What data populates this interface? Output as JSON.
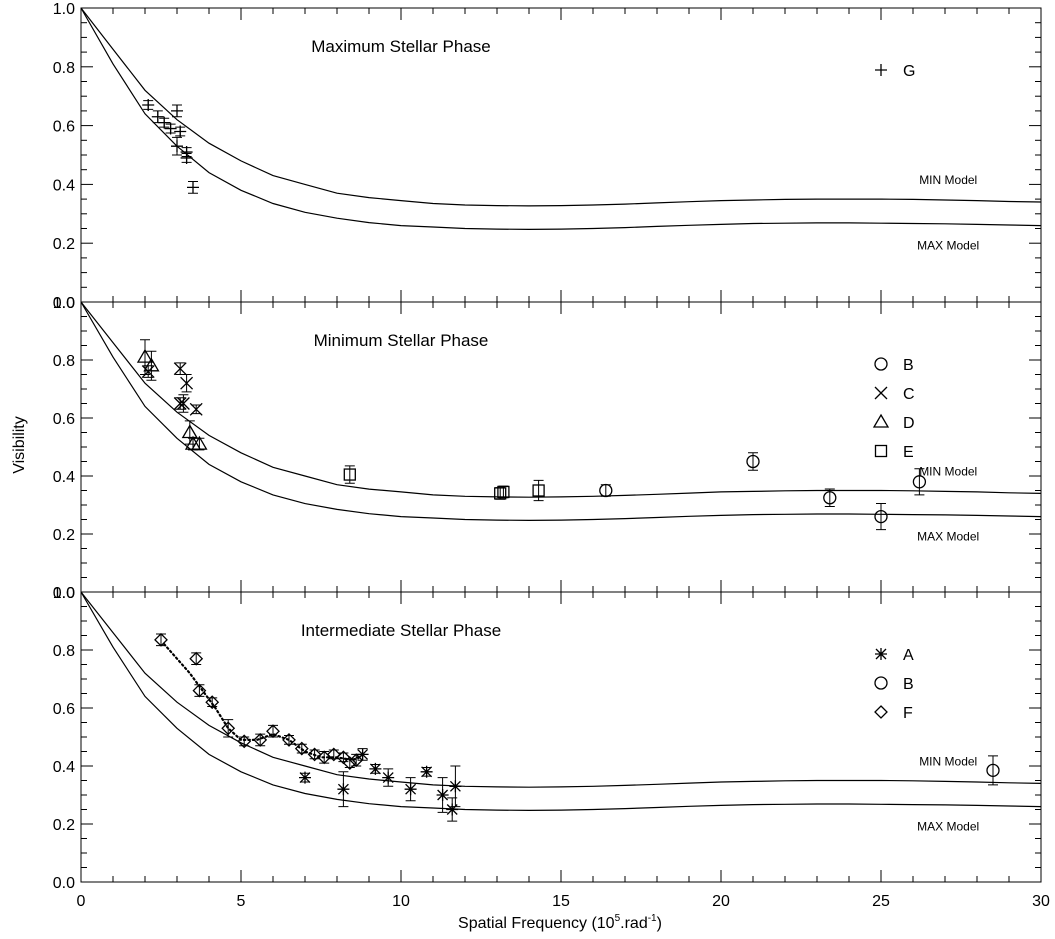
{
  "chart_data": {
    "type": "scatter",
    "xlabel": "Spatial Frequency  (10",
    "xlabel_exp": "5",
    "xlabel_mid": ".rad",
    "xlabel_exp2": "-1",
    "xlabel_end": ")",
    "ylabel": "Visibility",
    "xlim": [
      0,
      30
    ],
    "ylim": [
      0,
      1
    ],
    "x_ticks": [
      "0",
      "5",
      "10",
      "15",
      "20",
      "25",
      "30"
    ],
    "y_ticks": [
      "0.0",
      "0.2",
      "0.4",
      "0.6",
      "0.8",
      "1.0"
    ],
    "models": {
      "min_label": "MIN Model",
      "max_label": "MAX Model",
      "min_curve": [
        [
          0,
          1.0
        ],
        [
          1,
          0.86
        ],
        [
          2,
          0.72
        ],
        [
          3,
          0.62
        ],
        [
          4,
          0.54
        ],
        [
          5,
          0.48
        ],
        [
          6,
          0.43
        ],
        [
          7,
          0.4
        ],
        [
          8,
          0.37
        ],
        [
          9,
          0.355
        ],
        [
          10,
          0.345
        ],
        [
          11,
          0.335
        ],
        [
          12,
          0.33
        ],
        [
          13,
          0.328
        ],
        [
          14,
          0.327
        ],
        [
          15,
          0.328
        ],
        [
          16,
          0.33
        ],
        [
          17,
          0.333
        ],
        [
          18,
          0.337
        ],
        [
          19,
          0.341
        ],
        [
          20,
          0.345
        ],
        [
          21,
          0.347
        ],
        [
          22,
          0.349
        ],
        [
          23,
          0.35
        ],
        [
          24,
          0.35
        ],
        [
          25,
          0.35
        ],
        [
          26,
          0.349
        ],
        [
          27,
          0.347
        ],
        [
          28,
          0.345
        ],
        [
          29,
          0.342
        ],
        [
          30,
          0.34
        ]
      ],
      "max_curve": [
        [
          0,
          1.0
        ],
        [
          1,
          0.81
        ],
        [
          2,
          0.64
        ],
        [
          3,
          0.53
        ],
        [
          4,
          0.44
        ],
        [
          5,
          0.38
        ],
        [
          6,
          0.335
        ],
        [
          7,
          0.305
        ],
        [
          8,
          0.285
        ],
        [
          9,
          0.27
        ],
        [
          10,
          0.26
        ],
        [
          11,
          0.255
        ],
        [
          12,
          0.25
        ],
        [
          13,
          0.248
        ],
        [
          14,
          0.247
        ],
        [
          15,
          0.248
        ],
        [
          16,
          0.25
        ],
        [
          17,
          0.253
        ],
        [
          18,
          0.257
        ],
        [
          19,
          0.261
        ],
        [
          20,
          0.264
        ],
        [
          21,
          0.267
        ],
        [
          22,
          0.268
        ],
        [
          23,
          0.269
        ],
        [
          24,
          0.269
        ],
        [
          25,
          0.268
        ],
        [
          26,
          0.267
        ],
        [
          27,
          0.266
        ],
        [
          28,
          0.264
        ],
        [
          29,
          0.262
        ],
        [
          30,
          0.26
        ]
      ]
    },
    "panels": [
      {
        "title": "Maximum Stellar Phase",
        "legend": [
          {
            "symbol": "plus",
            "label": "G"
          }
        ],
        "series": [
          {
            "name": "G",
            "symbol": "plus",
            "points": [
              [
                2.1,
                0.67,
                0.015
              ],
              [
                2.4,
                0.63,
                0.02
              ],
              [
                2.6,
                0.61,
                0.015
              ],
              [
                2.8,
                0.59,
                0.015
              ],
              [
                3.0,
                0.65,
                0.02
              ],
              [
                3.1,
                0.58,
                0.015
              ],
              [
                3.0,
                0.53,
                0.03
              ],
              [
                3.3,
                0.51,
                0.015
              ],
              [
                3.3,
                0.49,
                0.015
              ],
              [
                3.5,
                0.39,
                0.02
              ]
            ]
          }
        ],
        "dotted": []
      },
      {
        "title": "Minimum Stellar Phase",
        "legend": [
          {
            "symbol": "circle",
            "label": "B"
          },
          {
            "symbol": "x",
            "label": "C"
          },
          {
            "symbol": "triangle",
            "label": "D"
          },
          {
            "symbol": "square",
            "label": "E"
          }
        ],
        "series": [
          {
            "name": "B",
            "symbol": "circle",
            "points": [
              [
                16.4,
                0.35,
                0.02
              ],
              [
                21.0,
                0.45,
                0.03
              ],
              [
                23.4,
                0.325,
                0.03
              ],
              [
                25.0,
                0.26,
                0.045
              ],
              [
                26.2,
                0.38,
                0.045
              ]
            ]
          },
          {
            "name": "C",
            "symbol": "x",
            "points": [
              [
                2.1,
                0.76,
                0.02
              ],
              [
                3.1,
                0.77,
                0.02
              ],
              [
                3.1,
                0.65,
                0.02
              ],
              [
                3.3,
                0.72,
                0.03
              ],
              [
                3.2,
                0.65,
                0.03
              ],
              [
                3.6,
                0.63,
                0.015
              ]
            ]
          },
          {
            "name": "D",
            "symbol": "triangle",
            "points": [
              [
                2.0,
                0.81,
                0.06
              ],
              [
                2.2,
                0.78,
                0.05
              ],
              [
                3.4,
                0.55,
                0.04
              ],
              [
                3.5,
                0.51,
                0.02
              ],
              [
                3.7,
                0.51,
                0.02
              ]
            ]
          },
          {
            "name": "E",
            "symbol": "square",
            "points": [
              [
                8.4,
                0.405,
                0.03
              ],
              [
                13.1,
                0.34,
                0.02
              ],
              [
                13.2,
                0.345,
                0.02
              ],
              [
                14.3,
                0.35,
                0.035
              ]
            ]
          }
        ],
        "dotted": []
      },
      {
        "title": "Intermediate Stellar Phase",
        "legend": [
          {
            "symbol": "asterisk",
            "label": "A"
          },
          {
            "symbol": "circle",
            "label": "B"
          },
          {
            "symbol": "diamond",
            "label": "F"
          }
        ],
        "series": [
          {
            "name": "A",
            "symbol": "asterisk",
            "points": [
              [
                7.0,
                0.36,
                0.015
              ],
              [
                8.2,
                0.32,
                0.06
              ],
              [
                8.8,
                0.44,
                0.02
              ],
              [
                9.2,
                0.39,
                0.015
              ],
              [
                9.6,
                0.36,
                0.03
              ],
              [
                10.3,
                0.32,
                0.04
              ],
              [
                10.8,
                0.38,
                0.015
              ],
              [
                11.3,
                0.3,
                0.06
              ],
              [
                11.6,
                0.25,
                0.04
              ],
              [
                11.7,
                0.33,
                0.07
              ]
            ]
          },
          {
            "name": "B",
            "symbol": "circle",
            "points": [
              [
                28.5,
                0.385,
                0.05
              ]
            ]
          },
          {
            "name": "F",
            "symbol": "diamond",
            "points": [
              [
                2.5,
                0.835,
                0.02
              ],
              [
                3.6,
                0.77,
                0.02
              ],
              [
                3.7,
                0.66,
                0.02
              ],
              [
                4.1,
                0.62,
                0.015
              ],
              [
                4.6,
                0.53,
                0.03
              ],
              [
                5.1,
                0.485,
                0.015
              ],
              [
                5.6,
                0.49,
                0.02
              ],
              [
                6.0,
                0.52,
                0.02
              ],
              [
                6.5,
                0.49,
                0.015
              ],
              [
                6.9,
                0.46,
                0.015
              ],
              [
                7.3,
                0.44,
                0.015
              ],
              [
                7.6,
                0.43,
                0.02
              ],
              [
                7.9,
                0.44,
                0.015
              ],
              [
                8.2,
                0.43,
                0.015
              ],
              [
                8.4,
                0.41,
                0.015
              ],
              [
                8.6,
                0.42,
                0.02
              ]
            ]
          }
        ],
        "dotted": [
          [
            2.6,
            0.82
          ],
          [
            3.0,
            0.77
          ],
          [
            3.4,
            0.72
          ],
          [
            3.8,
            0.66
          ],
          [
            4.2,
            0.6
          ],
          [
            4.6,
            0.53
          ],
          [
            5.0,
            0.49
          ],
          [
            5.5,
            0.49
          ],
          [
            6.0,
            0.51
          ],
          [
            6.5,
            0.49
          ],
          [
            7.0,
            0.45
          ],
          [
            7.5,
            0.43
          ],
          [
            8.0,
            0.43
          ],
          [
            8.5,
            0.42
          ],
          [
            8.8,
            0.44
          ]
        ]
      }
    ]
  }
}
